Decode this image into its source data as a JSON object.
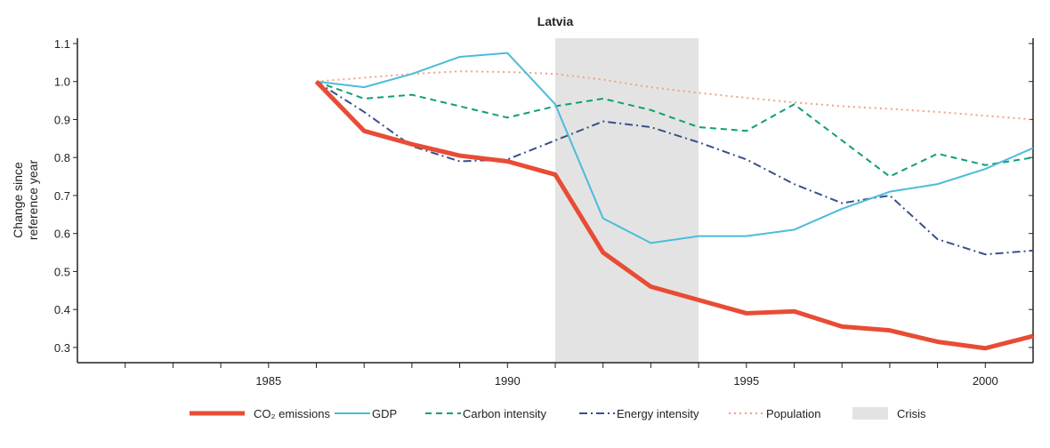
{
  "chart_data": {
    "type": "line",
    "title": "Latvia",
    "xlabel": "",
    "ylabel": "Change since reference year",
    "xlim": [
      1981,
      2001
    ],
    "ylim": [
      0.26,
      1.114
    ],
    "x_ticks": [
      1985,
      1990,
      1995,
      2000
    ],
    "y_ticks": [
      0.3,
      0.4,
      0.5,
      0.6,
      0.7,
      0.8,
      0.9,
      1.0,
      1.1
    ],
    "y_tick_labels": [
      "0.3",
      "0.4",
      "0.5",
      "0.6",
      "0.7",
      "0.8",
      "0.9",
      "1.0",
      "1.1"
    ],
    "grid": false,
    "legend_placement": "bottom",
    "x": [
      1986,
      1987,
      1988,
      1989,
      1990,
      1991,
      1992,
      1993,
      1994,
      1995,
      1996,
      1997,
      1998,
      1999,
      2000,
      2001
    ],
    "series": [
      {
        "name": "CO₂ emissions",
        "color": "#e84c35",
        "style": "solid-thick",
        "values": [
          1.0,
          0.87,
          0.835,
          0.805,
          0.79,
          0.755,
          0.55,
          0.46,
          0.425,
          0.39,
          0.395,
          0.355,
          0.345,
          0.315,
          0.298,
          0.33
        ]
      },
      {
        "name": "GDP",
        "color": "#4bbcd9",
        "style": "solid",
        "values": [
          1.0,
          0.985,
          1.02,
          1.065,
          1.075,
          0.94,
          0.64,
          0.575,
          0.593,
          0.593,
          0.61,
          0.665,
          0.71,
          0.73,
          0.77,
          0.825
        ]
      },
      {
        "name": "Carbon intensity",
        "color": "#0e9e7c",
        "style": "dashed",
        "values": [
          1.0,
          0.955,
          0.965,
          0.935,
          0.905,
          0.935,
          0.955,
          0.925,
          0.88,
          0.87,
          0.94,
          0.845,
          0.75,
          0.81,
          0.78,
          0.8
        ]
      },
      {
        "name": "Energy intensity",
        "color": "#3a4f8a",
        "style": "dashdot",
        "values": [
          1.0,
          0.92,
          0.83,
          0.79,
          0.795,
          0.845,
          0.895,
          0.88,
          0.84,
          0.795,
          0.73,
          0.68,
          0.7,
          0.585,
          0.545,
          0.555
        ]
      },
      {
        "name": "Population",
        "color": "#f4a083",
        "style": "dotted",
        "values": [
          1.0,
          1.01,
          1.02,
          1.027,
          1.025,
          1.02,
          1.005,
          0.985,
          0.97,
          0.957,
          0.945,
          0.935,
          0.928,
          0.92,
          0.91,
          0.9
        ]
      }
    ],
    "shaded_regions": [
      {
        "name": "Crisis",
        "from": 1991,
        "to": 1994,
        "color": "#e3e3e3"
      }
    ]
  }
}
